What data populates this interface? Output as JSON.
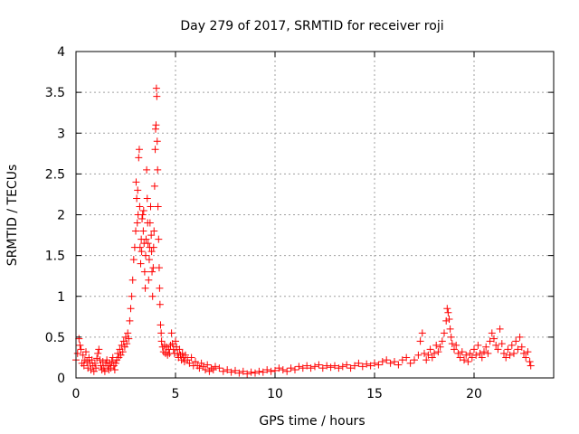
{
  "chart_data": {
    "type": "scatter",
    "title": "Day 279 of 2017, SRMTID for receiver roji",
    "xlabel": "GPS time / hours",
    "ylabel": "SRMTID / TECUs",
    "xlim": [
      0,
      24
    ],
    "ylim": [
      0,
      4
    ],
    "xticks": [
      0,
      5,
      10,
      15,
      20
    ],
    "xtick_labels": [
      "0",
      "5",
      "10",
      "15",
      "20"
    ],
    "yticks": [
      0,
      0.5,
      1,
      1.5,
      2,
      2.5,
      3,
      3.5,
      4
    ],
    "ytick_labels": [
      "0",
      "0.5",
      "1",
      "1.5",
      "2",
      "2.5",
      "3",
      "3.5",
      "4"
    ],
    "grid": true,
    "marker": "+",
    "series_color": "#ff0000",
    "series": [
      {
        "name": "SRMTID",
        "points": [
          [
            0.0,
            0.22
          ],
          [
            0.08,
            0.3
          ],
          [
            0.15,
            0.48
          ],
          [
            0.2,
            0.4
          ],
          [
            0.25,
            0.35
          ],
          [
            0.3,
            0.18
          ],
          [
            0.35,
            0.28
          ],
          [
            0.4,
            0.15
          ],
          [
            0.45,
            0.22
          ],
          [
            0.5,
            0.32
          ],
          [
            0.55,
            0.2
          ],
          [
            0.6,
            0.12
          ],
          [
            0.65,
            0.25
          ],
          [
            0.7,
            0.18
          ],
          [
            0.75,
            0.1
          ],
          [
            0.8,
            0.22
          ],
          [
            0.85,
            0.15
          ],
          [
            0.9,
            0.08
          ],
          [
            0.95,
            0.18
          ],
          [
            1.0,
            0.12
          ],
          [
            1.05,
            0.24
          ],
          [
            1.1,
            0.3
          ],
          [
            1.15,
            0.35
          ],
          [
            1.2,
            0.22
          ],
          [
            1.25,
            0.15
          ],
          [
            1.3,
            0.1
          ],
          [
            1.35,
            0.2
          ],
          [
            1.4,
            0.12
          ],
          [
            1.45,
            0.08
          ],
          [
            1.5,
            0.18
          ],
          [
            1.55,
            0.22
          ],
          [
            1.6,
            0.15
          ],
          [
            1.65,
            0.1
          ],
          [
            1.7,
            0.18
          ],
          [
            1.75,
            0.12
          ],
          [
            1.8,
            0.2
          ],
          [
            1.85,
            0.25
          ],
          [
            1.9,
            0.15
          ],
          [
            1.95,
            0.1
          ],
          [
            2.0,
            0.18
          ],
          [
            2.05,
            0.22
          ],
          [
            2.1,
            0.3
          ],
          [
            2.15,
            0.25
          ],
          [
            2.2,
            0.35
          ],
          [
            2.25,
            0.28
          ],
          [
            2.3,
            0.4
          ],
          [
            2.35,
            0.32
          ],
          [
            2.4,
            0.45
          ],
          [
            2.45,
            0.38
          ],
          [
            2.5,
            0.5
          ],
          [
            2.55,
            0.42
          ],
          [
            2.6,
            0.55
          ],
          [
            2.65,
            0.48
          ],
          [
            2.7,
            0.7
          ],
          [
            2.75,
            0.85
          ],
          [
            2.8,
            1.0
          ],
          [
            2.85,
            1.2
          ],
          [
            2.9,
            1.45
          ],
          [
            2.95,
            1.6
          ],
          [
            3.0,
            1.8
          ],
          [
            3.02,
            2.4
          ],
          [
            3.05,
            2.2
          ],
          [
            3.08,
            1.9
          ],
          [
            3.1,
            2.3
          ],
          [
            3.12,
            2.0
          ],
          [
            3.15,
            2.7
          ],
          [
            3.18,
            2.8
          ],
          [
            3.2,
            2.1
          ],
          [
            3.22,
            1.6
          ],
          [
            3.25,
            1.4
          ],
          [
            3.28,
            1.7
          ],
          [
            3.3,
            1.55
          ],
          [
            3.32,
            1.95
          ],
          [
            3.35,
            2.0
          ],
          [
            3.38,
            1.8
          ],
          [
            3.4,
            2.05
          ],
          [
            3.42,
            1.65
          ],
          [
            3.45,
            1.3
          ],
          [
            3.48,
            1.1
          ],
          [
            3.5,
            1.5
          ],
          [
            3.52,
            1.7
          ],
          [
            3.55,
            2.55
          ],
          [
            3.58,
            2.2
          ],
          [
            3.6,
            1.9
          ],
          [
            3.62,
            1.65
          ],
          [
            3.65,
            1.2
          ],
          [
            3.68,
            1.45
          ],
          [
            3.7,
            1.6
          ],
          [
            3.72,
            1.9
          ],
          [
            3.75,
            2.1
          ],
          [
            3.78,
            1.75
          ],
          [
            3.8,
            1.55
          ],
          [
            3.82,
            1.3
          ],
          [
            3.85,
            1.0
          ],
          [
            3.88,
            1.35
          ],
          [
            3.9,
            1.6
          ],
          [
            3.92,
            1.8
          ],
          [
            3.95,
            2.35
          ],
          [
            3.98,
            2.8
          ],
          [
            4.0,
            3.05
          ],
          [
            4.02,
            3.1
          ],
          [
            4.04,
            3.55
          ],
          [
            4.06,
            3.45
          ],
          [
            4.08,
            2.9
          ],
          [
            4.1,
            2.55
          ],
          [
            4.12,
            2.1
          ],
          [
            4.15,
            1.7
          ],
          [
            4.18,
            1.35
          ],
          [
            4.2,
            1.1
          ],
          [
            4.22,
            0.9
          ],
          [
            4.25,
            0.65
          ],
          [
            4.28,
            0.55
          ],
          [
            4.3,
            0.45
          ],
          [
            4.35,
            0.38
          ],
          [
            4.4,
            0.32
          ],
          [
            4.45,
            0.4
          ],
          [
            4.5,
            0.3
          ],
          [
            4.55,
            0.38
          ],
          [
            4.6,
            0.28
          ],
          [
            4.65,
            0.35
          ],
          [
            4.7,
            0.3
          ],
          [
            4.75,
            0.4
          ],
          [
            4.8,
            0.55
          ],
          [
            4.85,
            0.42
          ],
          [
            4.9,
            0.35
          ],
          [
            4.95,
            0.3
          ],
          [
            5.0,
            0.45
          ],
          [
            5.05,
            0.38
          ],
          [
            5.1,
            0.3
          ],
          [
            5.15,
            0.25
          ],
          [
            5.2,
            0.35
          ],
          [
            5.25,
            0.28
          ],
          [
            5.3,
            0.22
          ],
          [
            5.35,
            0.3
          ],
          [
            5.4,
            0.25
          ],
          [
            5.45,
            0.2
          ],
          [
            5.5,
            0.28
          ],
          [
            5.6,
            0.22
          ],
          [
            5.7,
            0.18
          ],
          [
            5.8,
            0.25
          ],
          [
            5.9,
            0.15
          ],
          [
            6.0,
            0.2
          ],
          [
            6.1,
            0.15
          ],
          [
            6.2,
            0.12
          ],
          [
            6.3,
            0.18
          ],
          [
            6.4,
            0.14
          ],
          [
            6.5,
            0.1
          ],
          [
            6.6,
            0.16
          ],
          [
            6.7,
            0.08
          ],
          [
            6.8,
            0.12
          ],
          [
            6.9,
            0.1
          ],
          [
            7.0,
            0.14
          ],
          [
            7.2,
            0.12
          ],
          [
            7.4,
            0.08
          ],
          [
            7.6,
            0.1
          ],
          [
            7.8,
            0.07
          ],
          [
            8.0,
            0.09
          ],
          [
            8.2,
            0.06
          ],
          [
            8.4,
            0.08
          ],
          [
            8.6,
            0.05
          ],
          [
            8.8,
            0.07
          ],
          [
            9.0,
            0.06
          ],
          [
            9.2,
            0.08
          ],
          [
            9.4,
            0.07
          ],
          [
            9.6,
            0.1
          ],
          [
            9.8,
            0.08
          ],
          [
            10.0,
            0.09
          ],
          [
            10.2,
            0.12
          ],
          [
            10.4,
            0.1
          ],
          [
            10.6,
            0.08
          ],
          [
            10.8,
            0.12
          ],
          [
            11.0,
            0.1
          ],
          [
            11.2,
            0.14
          ],
          [
            11.4,
            0.12
          ],
          [
            11.6,
            0.15
          ],
          [
            11.8,
            0.12
          ],
          [
            12.0,
            0.14
          ],
          [
            12.2,
            0.16
          ],
          [
            12.4,
            0.12
          ],
          [
            12.6,
            0.15
          ],
          [
            12.8,
            0.13
          ],
          [
            13.0,
            0.15
          ],
          [
            13.2,
            0.12
          ],
          [
            13.4,
            0.14
          ],
          [
            13.6,
            0.16
          ],
          [
            13.8,
            0.12
          ],
          [
            14.0,
            0.15
          ],
          [
            14.2,
            0.18
          ],
          [
            14.4,
            0.14
          ],
          [
            14.6,
            0.17
          ],
          [
            14.8,
            0.15
          ],
          [
            15.0,
            0.18
          ],
          [
            15.2,
            0.16
          ],
          [
            15.4,
            0.2
          ],
          [
            15.6,
            0.22
          ],
          [
            15.8,
            0.18
          ],
          [
            16.0,
            0.2
          ],
          [
            16.2,
            0.16
          ],
          [
            16.4,
            0.22
          ],
          [
            16.6,
            0.25
          ],
          [
            16.8,
            0.18
          ],
          [
            17.0,
            0.22
          ],
          [
            17.2,
            0.28
          ],
          [
            17.3,
            0.45
          ],
          [
            17.4,
            0.55
          ],
          [
            17.5,
            0.3
          ],
          [
            17.6,
            0.22
          ],
          [
            17.7,
            0.28
          ],
          [
            17.8,
            0.35
          ],
          [
            17.9,
            0.25
          ],
          [
            18.0,
            0.3
          ],
          [
            18.1,
            0.4
          ],
          [
            18.2,
            0.32
          ],
          [
            18.3,
            0.38
          ],
          [
            18.4,
            0.45
          ],
          [
            18.5,
            0.55
          ],
          [
            18.6,
            0.7
          ],
          [
            18.65,
            0.85
          ],
          [
            18.7,
            0.8
          ],
          [
            18.75,
            0.72
          ],
          [
            18.8,
            0.6
          ],
          [
            18.85,
            0.5
          ],
          [
            18.9,
            0.42
          ],
          [
            19.0,
            0.35
          ],
          [
            19.1,
            0.4
          ],
          [
            19.2,
            0.3
          ],
          [
            19.3,
            0.25
          ],
          [
            19.4,
            0.32
          ],
          [
            19.5,
            0.22
          ],
          [
            19.6,
            0.28
          ],
          [
            19.7,
            0.2
          ],
          [
            19.8,
            0.3
          ],
          [
            19.9,
            0.25
          ],
          [
            20.0,
            0.35
          ],
          [
            20.1,
            0.28
          ],
          [
            20.2,
            0.4
          ],
          [
            20.3,
            0.3
          ],
          [
            20.4,
            0.25
          ],
          [
            20.5,
            0.32
          ],
          [
            20.6,
            0.38
          ],
          [
            20.7,
            0.3
          ],
          [
            20.8,
            0.45
          ],
          [
            20.9,
            0.55
          ],
          [
            21.0,
            0.48
          ],
          [
            21.1,
            0.4
          ],
          [
            21.2,
            0.35
          ],
          [
            21.3,
            0.6
          ],
          [
            21.4,
            0.42
          ],
          [
            21.5,
            0.3
          ],
          [
            21.6,
            0.25
          ],
          [
            21.7,
            0.35
          ],
          [
            21.8,
            0.28
          ],
          [
            21.9,
            0.4
          ],
          [
            22.0,
            0.3
          ],
          [
            22.1,
            0.45
          ],
          [
            22.2,
            0.35
          ],
          [
            22.3,
            0.5
          ],
          [
            22.4,
            0.38
          ],
          [
            22.5,
            0.3
          ],
          [
            22.6,
            0.25
          ],
          [
            22.7,
            0.32
          ],
          [
            22.8,
            0.2
          ],
          [
            22.85,
            0.15
          ]
        ]
      }
    ]
  }
}
